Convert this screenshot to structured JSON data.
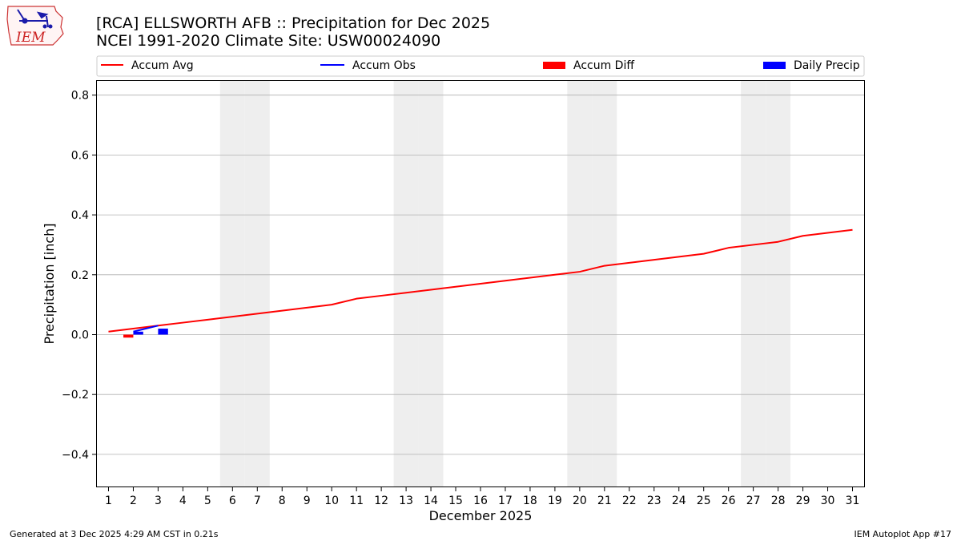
{
  "header": {
    "logo_text": "IEM",
    "title_line1": "[RCA] ELLSWORTH AFB :: Precipitation for Dec 2025",
    "title_line2": "NCEI 1991-2020 Climate Site: USW00024090"
  },
  "footer": {
    "generated": "Generated at 3 Dec 2025 4:29 AM CST in 0.21s",
    "app": "IEM Autoplot App #17"
  },
  "colors": {
    "accum_avg": "#ff0000",
    "accum_obs": "#0000ff",
    "accum_diff": "#ff0000",
    "daily_precip": "#0000ff",
    "weekend_shade": "#eeeeee",
    "grid": "#b0b0b0"
  },
  "chart_data": {
    "type": "line",
    "title": "[RCA] ELLSWORTH AFB :: Precipitation for Dec 2025",
    "subtitle": "NCEI 1991-2020 Climate Site: USW00024090",
    "xlabel": "December 2025",
    "ylabel": "Precipitation [inch]",
    "x": [
      1,
      2,
      3,
      4,
      5,
      6,
      7,
      8,
      9,
      10,
      11,
      12,
      13,
      14,
      15,
      16,
      17,
      18,
      19,
      20,
      21,
      22,
      23,
      24,
      25,
      26,
      27,
      28,
      29,
      30,
      31
    ],
    "xlim": [
      0.5,
      31.5
    ],
    "ylim": [
      -0.51,
      0.85
    ],
    "yticks": [
      -0.4,
      -0.2,
      0.0,
      0.2,
      0.4,
      0.6,
      0.8
    ],
    "ytick_labels": [
      "−0.4",
      "−0.2",
      "0.0",
      "0.2",
      "0.4",
      "0.6",
      "0.8"
    ],
    "grid": "horizontal",
    "legend_position": "top",
    "weekend_days": [
      6,
      7,
      13,
      14,
      20,
      21,
      27,
      28
    ],
    "series": [
      {
        "name": "Accum Avg",
        "kind": "line",
        "x": [
          1,
          2,
          3,
          4,
          5,
          6,
          7,
          8,
          9,
          10,
          11,
          12,
          13,
          14,
          15,
          16,
          17,
          18,
          19,
          20,
          21,
          22,
          23,
          24,
          25,
          26,
          27,
          28,
          29,
          30,
          31
        ],
        "values": [
          0.01,
          0.02,
          0.03,
          0.04,
          0.05,
          0.06,
          0.07,
          0.08,
          0.09,
          0.1,
          0.12,
          0.13,
          0.14,
          0.15,
          0.16,
          0.17,
          0.18,
          0.19,
          0.2,
          0.21,
          0.23,
          0.24,
          0.25,
          0.26,
          0.27,
          0.29,
          0.3,
          0.31,
          0.33,
          0.34,
          0.35
        ]
      },
      {
        "name": "Accum Obs",
        "kind": "line",
        "x": [
          2,
          3
        ],
        "values": [
          0.01,
          0.03
        ]
      },
      {
        "name": "Accum Diff",
        "kind": "bar",
        "x": [
          1.8
        ],
        "values": [
          -0.01
        ]
      },
      {
        "name": "Daily Precip",
        "kind": "bar",
        "x": [
          2.2,
          3.2
        ],
        "values": [
          0.01,
          0.02
        ]
      }
    ]
  }
}
